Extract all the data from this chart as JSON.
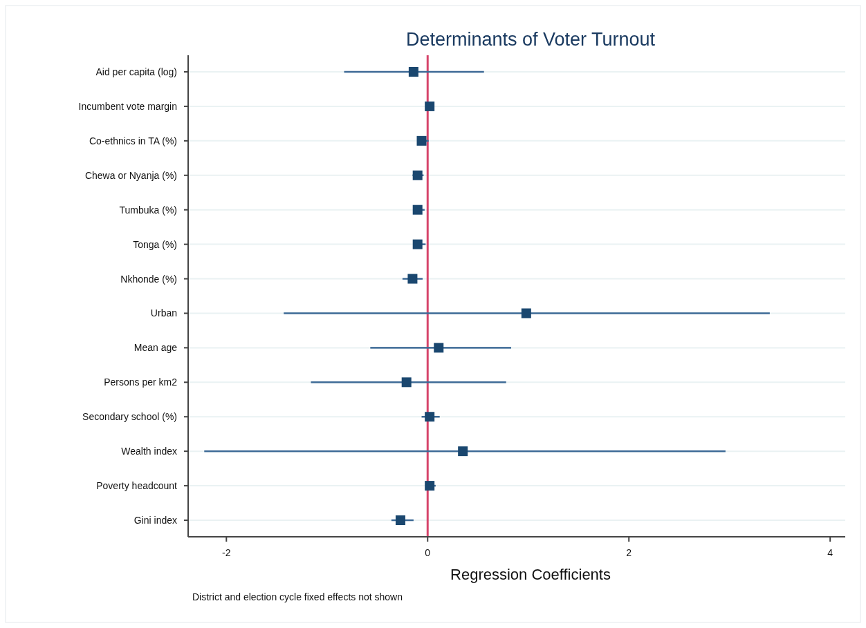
{
  "chart_data": {
    "type": "scatter",
    "orientation": "horizontal",
    "title": "Determinants of  Voter Turnout",
    "xlabel": "Regression Coefficients",
    "annotations": [
      "District and election cycle fixed effects not shown"
    ],
    "categories": [
      "Aid per capita (log)",
      "Incumbent vote margin",
      "Co-ethnics in TA (%)",
      "Chewa or Nyanja (%)",
      "Tumbuka (%)",
      "Tonga (%)",
      "Nkhonde (%)",
      "Urban",
      "Mean age",
      "Persons per km2",
      "Secondary school (%)",
      "Wealth index",
      "Poverty headcount",
      "Gini index"
    ],
    "series": [
      {
        "color": "#1a476f",
        "values": [
          -0.14,
          0.02,
          -0.06,
          -0.1,
          -0.1,
          -0.1,
          -0.15,
          0.98,
          0.11,
          -0.21,
          0.02,
          0.35,
          0.02,
          -0.27
        ],
        "errors": [
          [
            -0.83,
            0.56
          ],
          null,
          [
            -0.1,
            0.01
          ],
          [
            -0.15,
            -0.04
          ],
          [
            -0.14,
            -0.03
          ],
          [
            -0.14,
            -0.02
          ],
          [
            -0.25,
            -0.05
          ],
          [
            -1.43,
            3.4
          ],
          [
            -0.57,
            0.83
          ],
          [
            -1.16,
            0.78
          ],
          [
            -0.06,
            0.12
          ],
          [
            -2.22,
            2.96
          ],
          [
            -0.01,
            0.08
          ],
          [
            -0.36,
            -0.14
          ]
        ]
      }
    ],
    "xlim": [
      -2.38,
      4.15
    ],
    "xticks": [
      -2,
      0,
      2,
      4
    ],
    "grid": "y",
    "marker": "square",
    "ref_lines": [
      {
        "axis": "x",
        "value": 0,
        "color": "#d6456b"
      }
    ]
  }
}
